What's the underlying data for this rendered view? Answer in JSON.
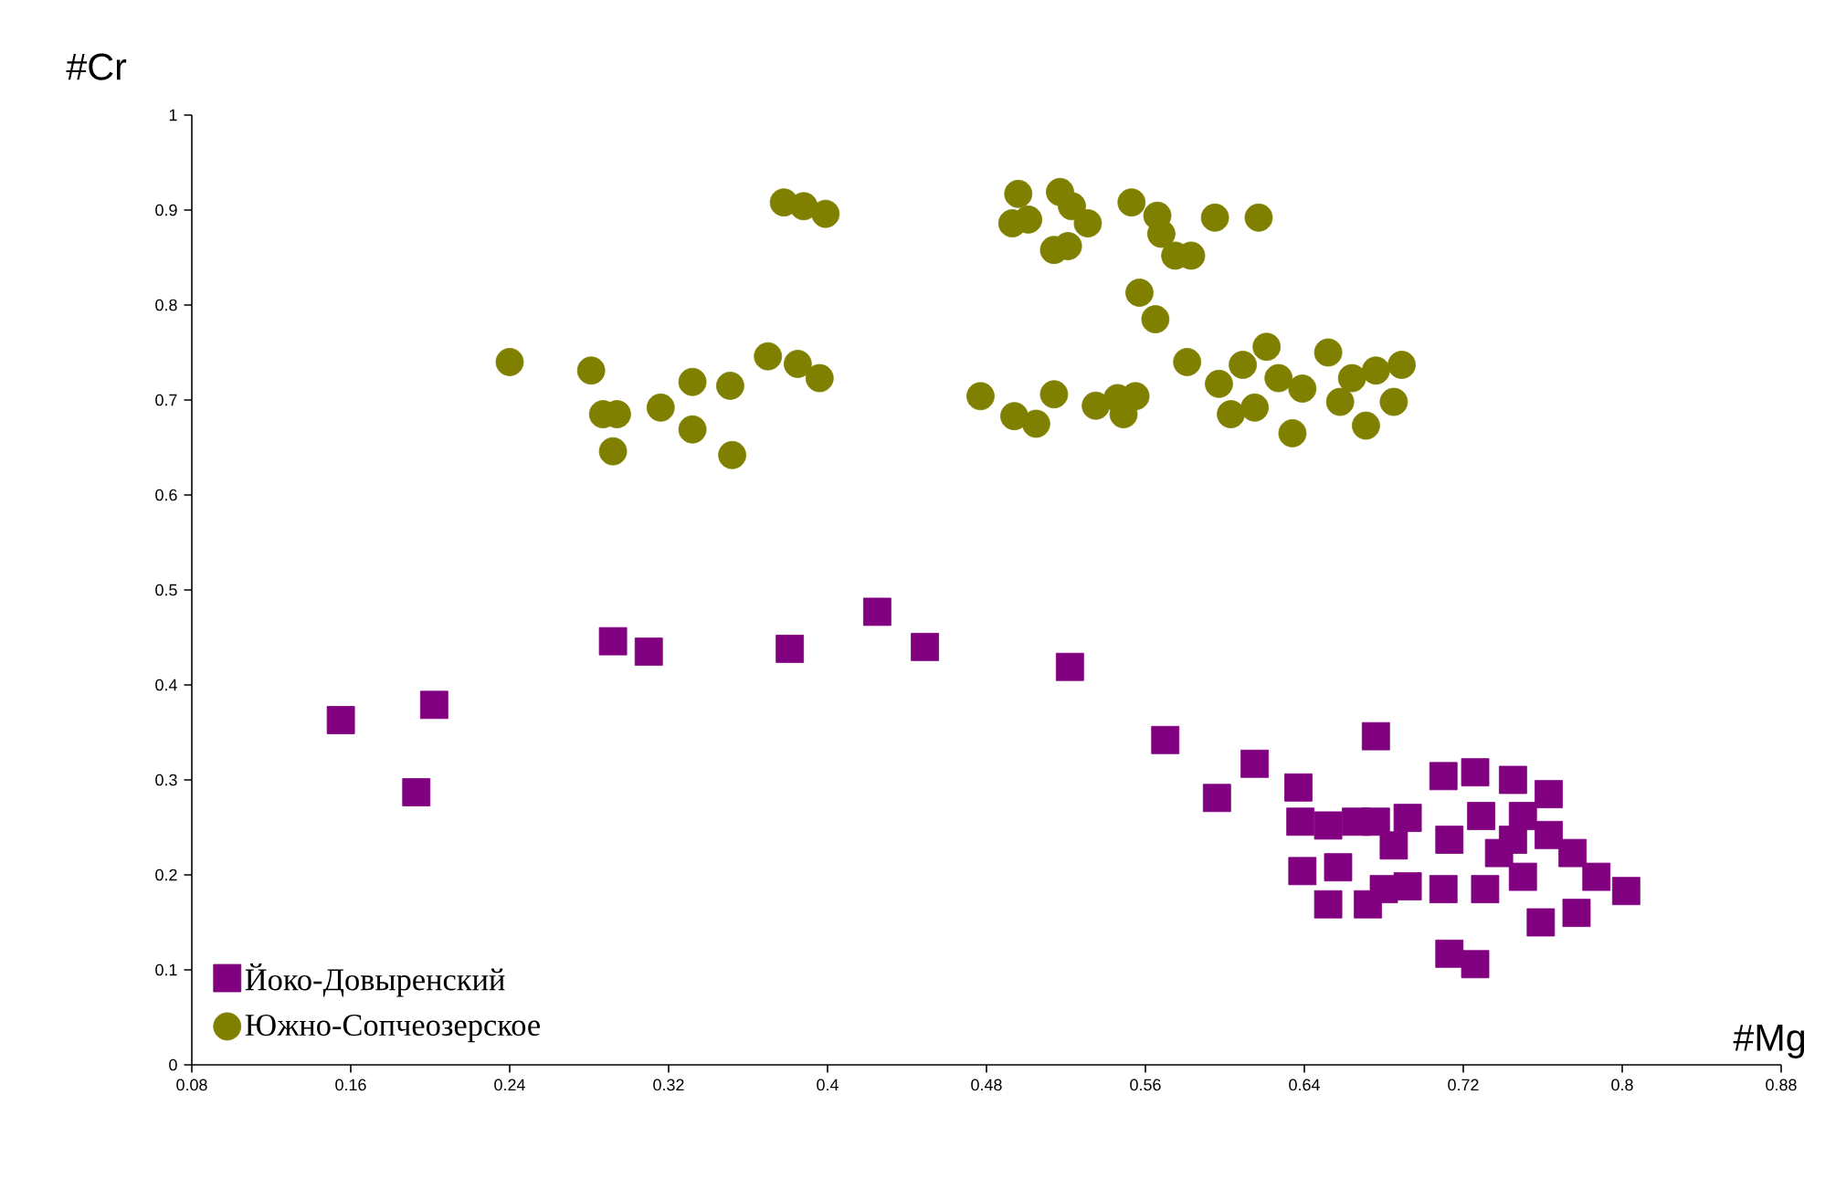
{
  "chart_data": {
    "type": "scatter",
    "xlabel": "#Mg",
    "ylabel": "#Cr",
    "xlim": [
      0.08,
      0.88
    ],
    "ylim": [
      0,
      1
    ],
    "xticks": [
      0.08,
      0.16,
      0.24,
      0.32,
      0.4,
      0.48,
      0.56,
      0.64,
      0.72,
      0.8,
      0.88
    ],
    "yticks": [
      0,
      0.1,
      0.2,
      0.3,
      0.4,
      0.5,
      0.6,
      0.7,
      0.8,
      0.9,
      1
    ],
    "grid": false,
    "legend": "bottom left",
    "series": [
      {
        "name": "Йоко-Довыренский",
        "color": "#800080",
        "marker": "square",
        "x": [
          0.155,
          0.193,
          0.202,
          0.292,
          0.31,
          0.381,
          0.425,
          0.449,
          0.522,
          0.57,
          0.596,
          0.615,
          0.676,
          0.637,
          0.638,
          0.652,
          0.666,
          0.676,
          0.692,
          0.685,
          0.639,
          0.657,
          0.652,
          0.672,
          0.68,
          0.692,
          0.71,
          0.71,
          0.726,
          0.745,
          0.763,
          0.713,
          0.729,
          0.738,
          0.731,
          0.75,
          0.763,
          0.775,
          0.787,
          0.777,
          0.759,
          0.802,
          0.713,
          0.726,
          0.745,
          0.75
        ],
        "values": [
          0.363,
          0.287,
          0.379,
          0.446,
          0.435,
          0.438,
          0.477,
          0.44,
          0.419,
          0.342,
          0.281,
          0.317,
          0.346,
          0.292,
          0.256,
          0.252,
          0.256,
          0.256,
          0.26,
          0.231,
          0.204,
          0.208,
          0.169,
          0.169,
          0.185,
          0.188,
          0.185,
          0.304,
          0.308,
          0.3,
          0.285,
          0.237,
          0.262,
          0.223,
          0.185,
          0.198,
          0.242,
          0.223,
          0.198,
          0.16,
          0.15,
          0.183,
          0.117,
          0.106,
          0.237,
          0.262
        ]
      },
      {
        "name": "Южно-Сопчеозерское",
        "color": "#808000",
        "marker": "circle",
        "x": [
          0.24,
          0.281,
          0.287,
          0.294,
          0.292,
          0.316,
          0.332,
          0.332,
          0.351,
          0.352,
          0.37,
          0.385,
          0.396,
          0.378,
          0.388,
          0.399,
          0.496,
          0.493,
          0.501,
          0.517,
          0.523,
          0.531,
          0.514,
          0.521,
          0.553,
          0.566,
          0.568,
          0.575,
          0.583,
          0.595,
          0.617,
          0.557,
          0.565,
          0.477,
          0.494,
          0.505,
          0.514,
          0.535,
          0.546,
          0.549,
          0.555,
          0.581,
          0.597,
          0.609,
          0.621,
          0.615,
          0.634,
          0.639,
          0.652,
          0.658,
          0.671,
          0.676,
          0.689,
          0.685,
          0.627,
          0.603,
          0.664
        ],
        "values": [
          0.74,
          0.731,
          0.685,
          0.685,
          0.646,
          0.692,
          0.719,
          0.669,
          0.715,
          0.642,
          0.746,
          0.738,
          0.723,
          0.908,
          0.904,
          0.896,
          0.917,
          0.886,
          0.89,
          0.919,
          0.904,
          0.886,
          0.858,
          0.862,
          0.908,
          0.894,
          0.875,
          0.852,
          0.852,
          0.892,
          0.892,
          0.813,
          0.785,
          0.704,
          0.683,
          0.675,
          0.706,
          0.694,
          0.702,
          0.685,
          0.704,
          0.74,
          0.717,
          0.737,
          0.756,
          0.692,
          0.665,
          0.712,
          0.75,
          0.698,
          0.673,
          0.731,
          0.737,
          0.698,
          0.723,
          0.685,
          0.723
        ]
      }
    ]
  }
}
